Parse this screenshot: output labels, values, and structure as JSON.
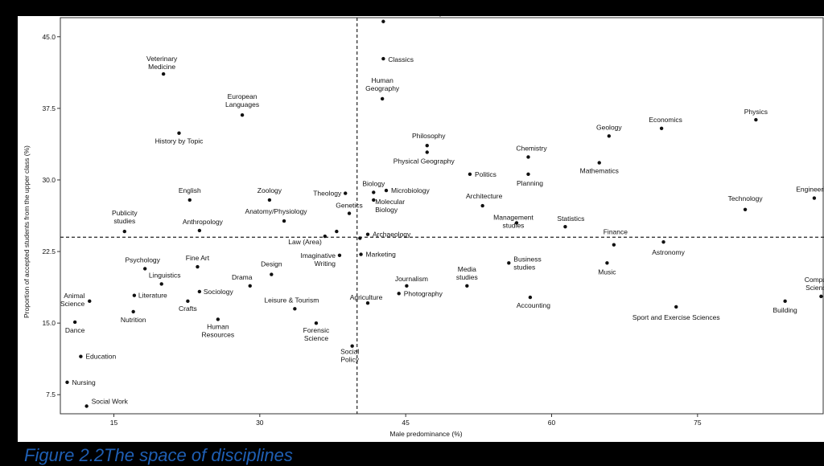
{
  "caption": "Figure 2.2The space of disciplines",
  "chart_data": {
    "type": "scatter",
    "title": "",
    "xlabel": "Male predominance (%)",
    "ylabel": "Proportion of accepted students from the upper class (%)",
    "xlim": [
      9.5,
      88
    ],
    "ylim": [
      5.5,
      47
    ],
    "xticks": [
      15,
      30,
      45,
      60,
      75
    ],
    "yticks": [
      7.5,
      15.0,
      22.5,
      30.0,
      37.5,
      45.0
    ],
    "tick_labels_x": [
      "15",
      "30",
      "45",
      "60",
      "75"
    ],
    "tick_labels_y": [
      "7.5",
      "15.0",
      "22.5",
      "30.0",
      "37.5",
      "45.0"
    ],
    "reference_lines": {
      "vertical_x": 40.0,
      "horizontal_y": 24.0,
      "style": "dashed"
    },
    "grid": false,
    "points": [
      {
        "label": "Medicine/Dentistry",
        "x": 42.7,
        "y": 46.6
      },
      {
        "label": "Classics",
        "x": 42.7,
        "y": 42.7
      },
      {
        "label": "Human\nGeography",
        "x": 42.6,
        "y": 38.5
      },
      {
        "label": "Veterinary\nMedicine",
        "x": 20.1,
        "y": 41.1
      },
      {
        "label": "European\nLanguages",
        "x": 28.2,
        "y": 36.8
      },
      {
        "label": "History by Topic",
        "x": 21.7,
        "y": 34.9
      },
      {
        "label": "Physics",
        "x": 81.0,
        "y": 36.3
      },
      {
        "label": "Economics",
        "x": 71.3,
        "y": 35.4
      },
      {
        "label": "Geology",
        "x": 65.9,
        "y": 34.6
      },
      {
        "label": "Philosophy",
        "x": 47.2,
        "y": 33.6
      },
      {
        "label": "Physical Geography",
        "x": 47.2,
        "y": 32.9
      },
      {
        "label": "Chemistry",
        "x": 57.6,
        "y": 32.4
      },
      {
        "label": "Mathematics",
        "x": 64.9,
        "y": 31.8
      },
      {
        "label": "Politics",
        "x": 51.6,
        "y": 30.6
      },
      {
        "label": "Planning",
        "x": 57.6,
        "y": 30.6
      },
      {
        "label": "English",
        "x": 22.8,
        "y": 27.9
      },
      {
        "label": "Zoology",
        "x": 31.0,
        "y": 27.9
      },
      {
        "label": "Theology",
        "x": 38.8,
        "y": 28.6
      },
      {
        "label": "Biology",
        "x": 41.7,
        "y": 28.7
      },
      {
        "label": "Microbiology",
        "x": 43.0,
        "y": 28.9
      },
      {
        "label": "Molecular\nBiology",
        "x": 41.7,
        "y": 27.9
      },
      {
        "label": "Genetics",
        "x": 39.2,
        "y": 26.5
      },
      {
        "label": "Architecture",
        "x": 52.9,
        "y": 27.3
      },
      {
        "label": "Engineering",
        "x": 87.0,
        "y": 28.1
      },
      {
        "label": "Technology",
        "x": 79.9,
        "y": 26.9
      },
      {
        "label": "Publicity\nstudies",
        "x": 16.1,
        "y": 24.6
      },
      {
        "label": "Anthropology",
        "x": 23.8,
        "y": 24.7
      },
      {
        "label": "Anatomy/Physiology",
        "x": 32.5,
        "y": 25.7
      },
      {
        "label": "Management\nstudies",
        "x": 56.4,
        "y": 25.5
      },
      {
        "label": "Statistics",
        "x": 61.4,
        "y": 25.1
      },
      {
        "label": "Archaeology",
        "x": 41.1,
        "y": 24.3
      },
      {
        "label": "Law (Area)",
        "x": 36.7,
        "y": 24.1
      },
      {
        "label": "",
        "x": 37.9,
        "y": 24.6
      },
      {
        "label": "",
        "x": 40.3,
        "y": 23.9
      },
      {
        "label": "Finance",
        "x": 66.4,
        "y": 23.2
      },
      {
        "label": "Astronomy",
        "x": 71.5,
        "y": 23.5
      },
      {
        "label": "Psychology",
        "x": 18.2,
        "y": 20.7
      },
      {
        "label": "Fine Art",
        "x": 23.6,
        "y": 20.9
      },
      {
        "label": "Imaginative\nWriting",
        "x": 38.2,
        "y": 22.1
      },
      {
        "label": "Marketing",
        "x": 40.4,
        "y": 22.2
      },
      {
        "label": "Business\nstudies",
        "x": 55.6,
        "y": 21.3
      },
      {
        "label": "Music",
        "x": 65.7,
        "y": 21.3
      },
      {
        "label": "Design",
        "x": 31.2,
        "y": 20.1
      },
      {
        "label": "Linguistics",
        "x": 19.9,
        "y": 19.1
      },
      {
        "label": "Drama",
        "x": 29.0,
        "y": 18.9
      },
      {
        "label": "Media\nstudies",
        "x": 51.3,
        "y": 18.9
      },
      {
        "label": "Journalism",
        "x": 45.1,
        "y": 18.9
      },
      {
        "label": "Sociology",
        "x": 23.8,
        "y": 18.3
      },
      {
        "label": "Literature",
        "x": 17.1,
        "y": 17.9
      },
      {
        "label": "Agriculture",
        "x": 41.1,
        "y": 17.1
      },
      {
        "label": "Photography",
        "x": 44.3,
        "y": 18.1
      },
      {
        "label": "Animal\nScience",
        "x": 12.5,
        "y": 17.3
      },
      {
        "label": "Crafts",
        "x": 22.6,
        "y": 17.3
      },
      {
        "label": "Leisure & Tourism",
        "x": 33.6,
        "y": 16.5
      },
      {
        "label": "Nutrition",
        "x": 17.0,
        "y": 16.2
      },
      {
        "label": "Accounting",
        "x": 57.8,
        "y": 17.7
      },
      {
        "label": "Sport and Exercise Sciences",
        "x": 72.8,
        "y": 16.7
      },
      {
        "label": "Building",
        "x": 84.0,
        "y": 17.3
      },
      {
        "label": "Computer\nSciences",
        "x": 87.7,
        "y": 17.8
      },
      {
        "label": "Dance",
        "x": 11.0,
        "y": 15.1
      },
      {
        "label": "Human\nResources",
        "x": 25.7,
        "y": 15.4
      },
      {
        "label": "Forensic\nScience",
        "x": 35.8,
        "y": 15.0
      },
      {
        "label": "Social\nPolicy",
        "x": 39.5,
        "y": 12.6
      },
      {
        "label": "Education",
        "x": 11.6,
        "y": 11.5
      },
      {
        "label": "Nursing",
        "x": 10.2,
        "y": 8.8
      },
      {
        "label": "Social Work",
        "x": 12.2,
        "y": 6.3
      }
    ]
  }
}
